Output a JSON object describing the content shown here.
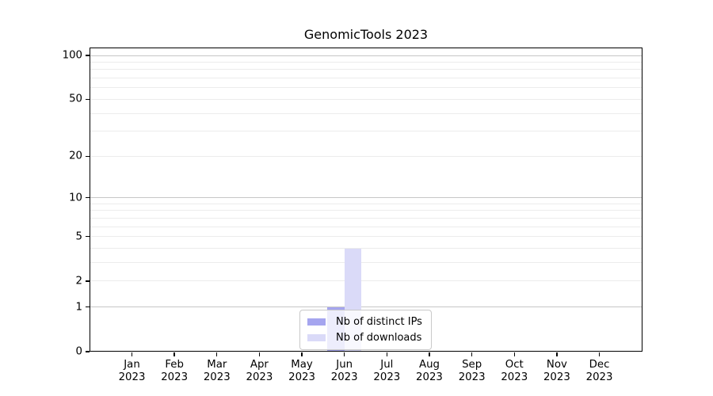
{
  "chart_data": {
    "type": "bar",
    "title": "GenomicTools 2023",
    "categories": [
      "Jan 2023",
      "Feb 2023",
      "Mar 2023",
      "Apr 2023",
      "May 2023",
      "Jun 2023",
      "Jul 2023",
      "Aug 2023",
      "Sep 2023",
      "Oct 2023",
      "Nov 2023",
      "Dec 2023"
    ],
    "series": [
      {
        "name": "Nb of distinct IPs",
        "color": "#a5a5ef",
        "values": [
          0,
          0,
          0,
          0,
          0,
          1,
          0,
          0,
          0,
          0,
          0,
          0
        ]
      },
      {
        "name": "Nb of downloads",
        "color": "#dadaf8",
        "values": [
          0,
          0,
          0,
          0,
          0,
          4,
          0,
          0,
          0,
          0,
          0,
          0
        ]
      }
    ],
    "y_axis": {
      "scale": "log1p",
      "tick_labels": [
        0,
        1,
        2,
        5,
        10,
        20,
        50,
        100
      ],
      "major_gridlines": [
        1,
        10,
        100
      ],
      "minor_gridlines": [
        2,
        3,
        4,
        5,
        6,
        7,
        8,
        9,
        20,
        30,
        40,
        50,
        60,
        70,
        80,
        90
      ],
      "ylim": [
        0,
        113.3
      ]
    },
    "x_axis": {
      "year_line": "2023"
    },
    "legend": {
      "position": "lower-center-inside"
    },
    "grid": "on",
    "colors": {
      "major_grid": "#c6c6c6",
      "minor_grid": "#ececec",
      "axis": "#000000",
      "text": "#000000",
      "background": "#ffffff"
    }
  }
}
